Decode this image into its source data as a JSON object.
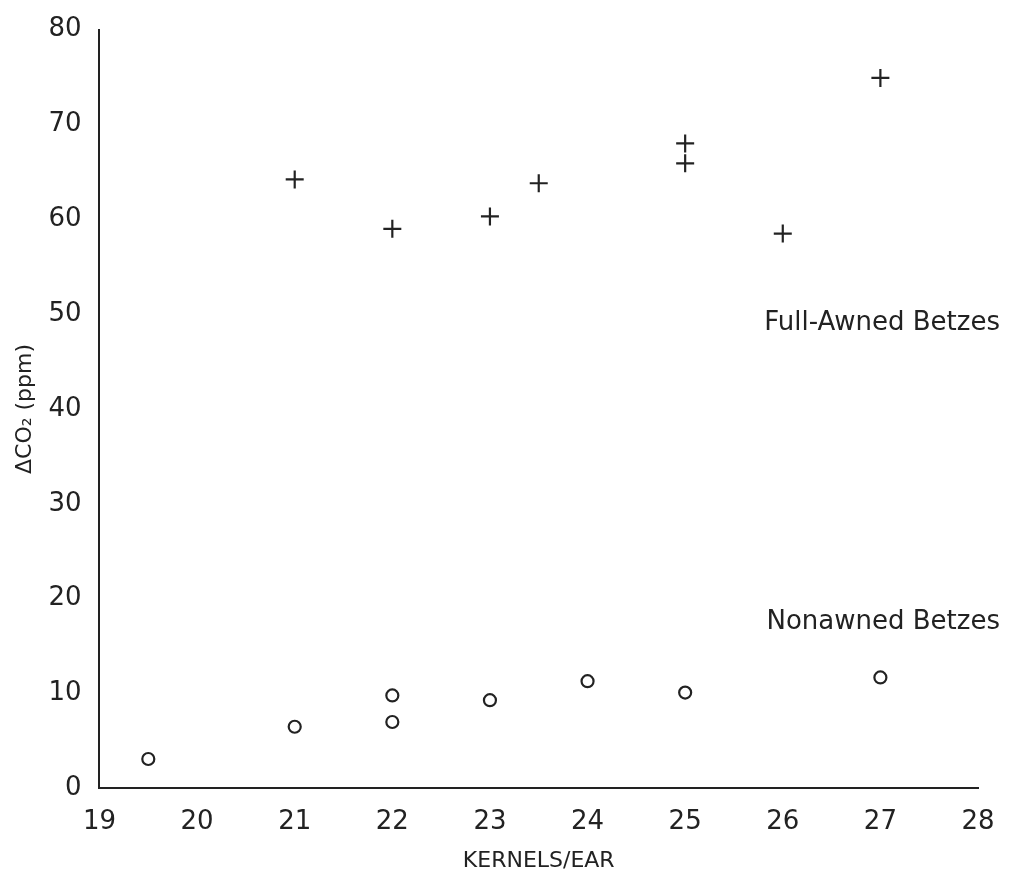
{
  "chart_data": {
    "type": "scatter",
    "xlabel": "KERNELS/EAR",
    "ylabel": "ΔCO₂ (ppm)",
    "xlim": [
      19,
      28
    ],
    "xticks": [
      19,
      20,
      21,
      22,
      23,
      24,
      25,
      26,
      27,
      28
    ],
    "ylim": [
      0,
      80
    ],
    "yticks": [
      0,
      10,
      20,
      30,
      40,
      50,
      60,
      70,
      80
    ],
    "grid": false,
    "legend": false,
    "series": [
      {
        "name": "Full-Awned Betzes",
        "color": "#222222",
        "marker": "cross",
        "x": [
          21,
          22,
          23,
          23.5,
          25,
          25,
          26,
          27
        ],
        "values": [
          64.2,
          59,
          60.3,
          63.8,
          68,
          65.9,
          58.5,
          74.9
        ]
      },
      {
        "name": "Nonawned Betzes",
        "color": "#222222",
        "marker": "circle",
        "x": [
          19.5,
          21,
          22,
          22,
          23,
          24,
          25,
          27
        ],
        "values": [
          3.1,
          6.5,
          9.8,
          7,
          9.3,
          11.3,
          10.1,
          11.7
        ]
      }
    ]
  }
}
